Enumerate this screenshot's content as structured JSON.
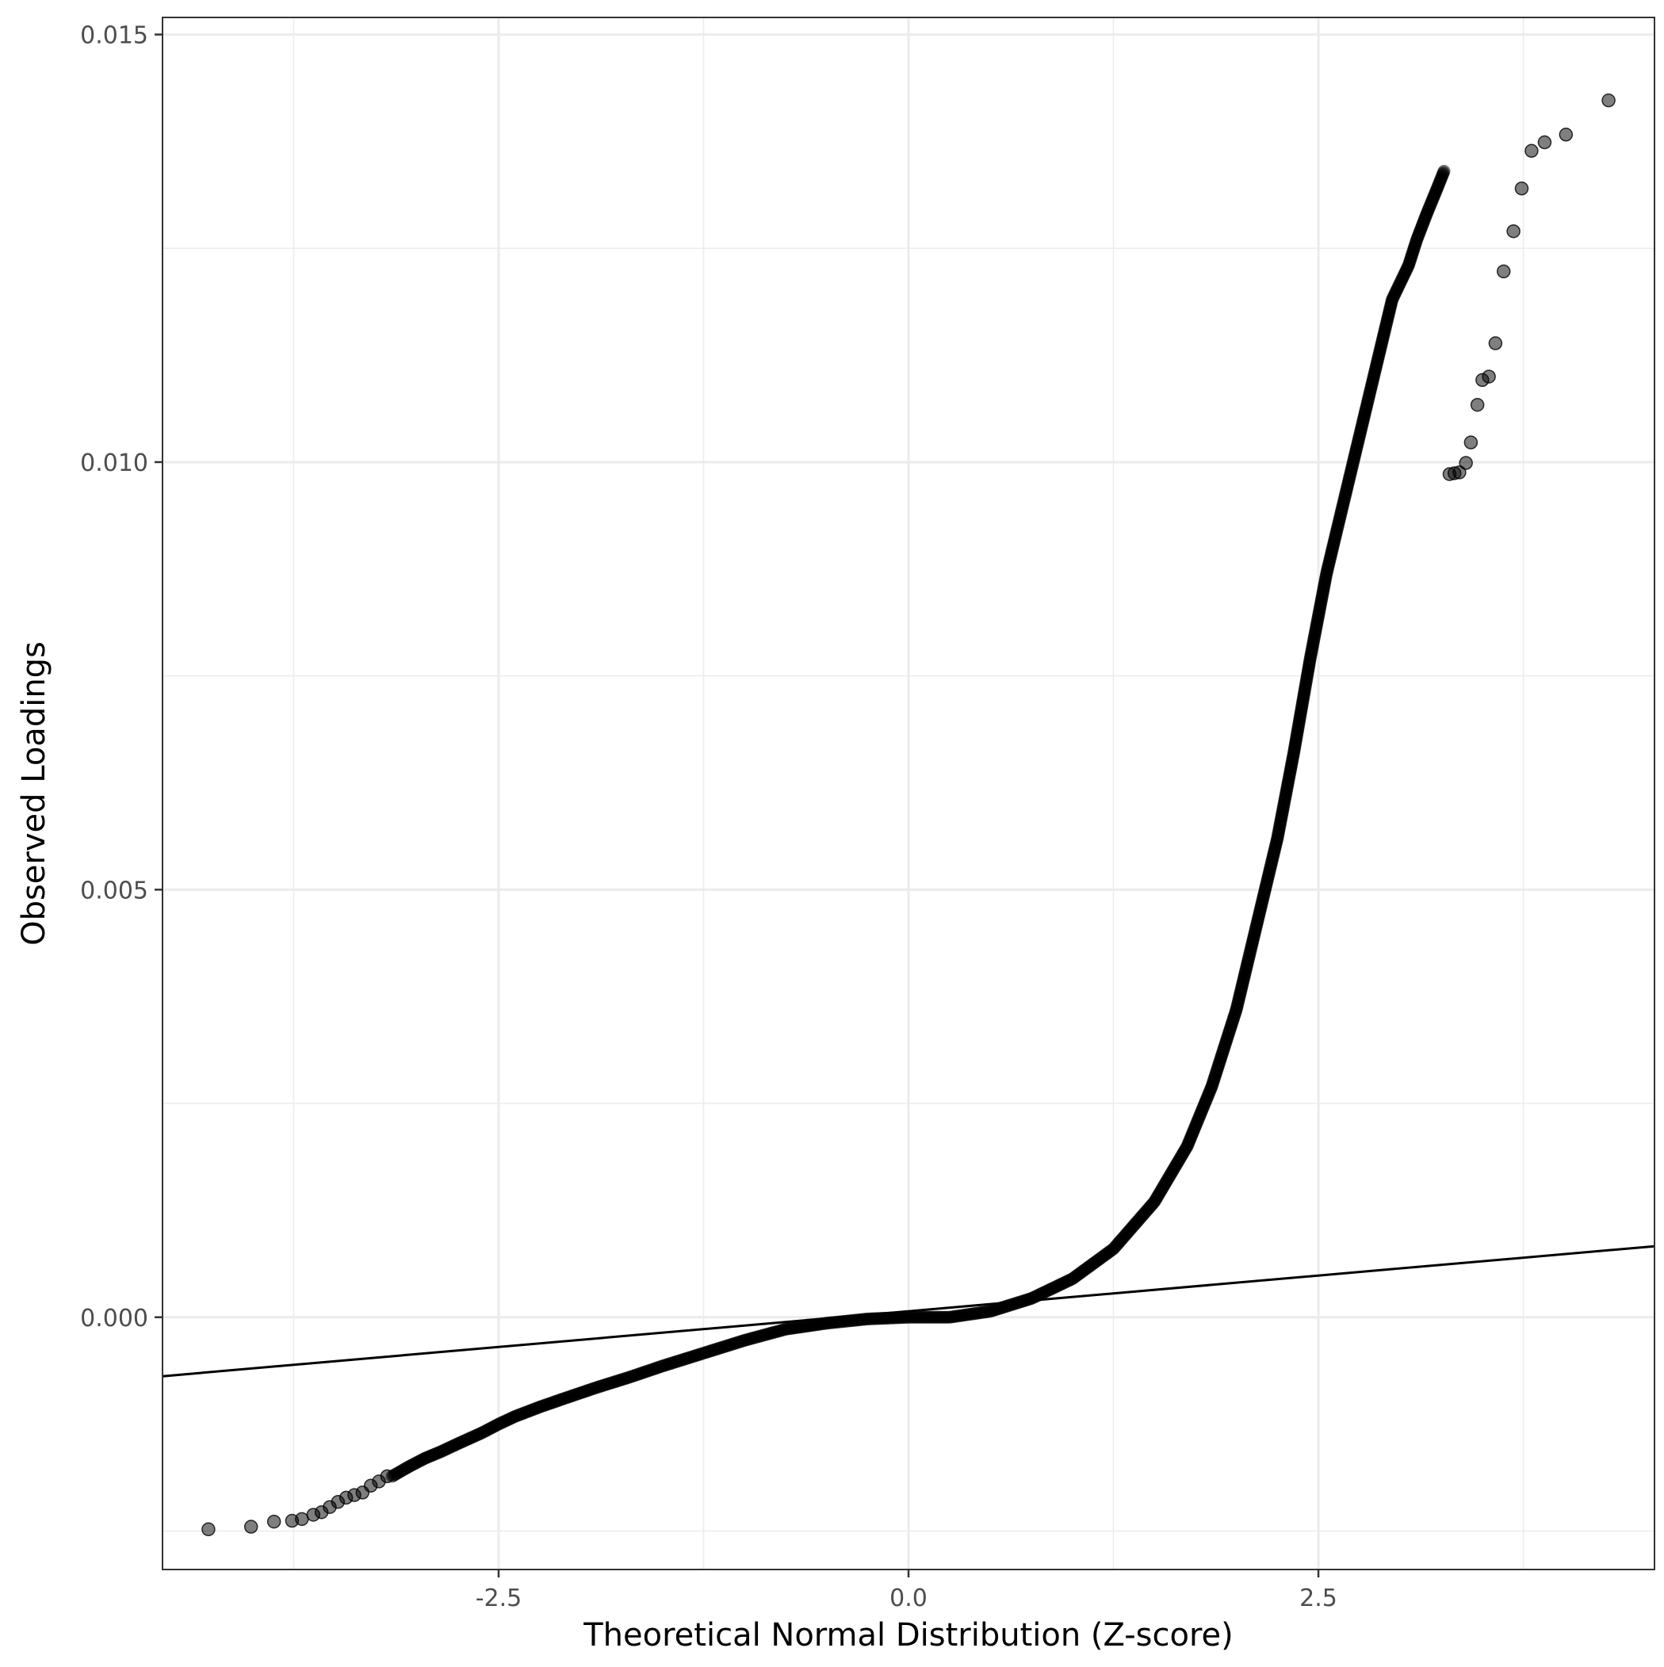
{
  "chart_data": {
    "type": "scatter",
    "subtype": "qq-plot",
    "title": "",
    "xlabel": "Theoretical Normal Distribution (Z-score)",
    "ylabel": "Observed Loadings",
    "xlim": [
      -4.55,
      4.55
    ],
    "ylim": [
      -0.00295,
      0.0152
    ],
    "x_ticks": [
      {
        "value": -2.5,
        "label": "-2.5"
      },
      {
        "value": 0.0,
        "label": "0.0"
      },
      {
        "value": 2.5,
        "label": "2.5"
      }
    ],
    "y_ticks": [
      {
        "value": 0.0,
        "label": "0.000"
      },
      {
        "value": 0.005,
        "label": "0.005"
      },
      {
        "value": 0.01,
        "label": "0.010"
      },
      {
        "value": 0.015,
        "label": "0.015"
      }
    ],
    "x_minor_gridlines": [
      -3.75,
      -1.25,
      1.25,
      3.75
    ],
    "y_minor_gridlines": [
      -0.0025,
      0.0025,
      0.0075,
      0.0125
    ],
    "grid": true,
    "colors": {
      "points": "#000000",
      "reference_line": "#000000",
      "grid": "#ebebeb",
      "panel_border": "#333333",
      "tick_label": "#4d4d4d"
    },
    "point_opacity": 0.5,
    "reference_line": {
      "type": "qqline",
      "points": [
        [
          -4.55,
          -0.00069
        ],
        [
          4.55,
          0.00083
        ]
      ]
    },
    "outlier_points": [
      {
        "x": -4.27,
        "y": -0.00248
      },
      {
        "x": -4.01,
        "y": -0.00245
      },
      {
        "x": -3.87,
        "y": -0.00239
      },
      {
        "x": -3.76,
        "y": -0.00238
      },
      {
        "x": -3.7,
        "y": -0.00236
      },
      {
        "x": -3.63,
        "y": -0.00231
      },
      {
        "x": -3.58,
        "y": -0.00228
      },
      {
        "x": -3.53,
        "y": -0.00222
      },
      {
        "x": -3.48,
        "y": -0.00216
      },
      {
        "x": -3.43,
        "y": -0.00211
      },
      {
        "x": -3.38,
        "y": -0.00208
      },
      {
        "x": -3.33,
        "y": -0.00205
      },
      {
        "x": -3.28,
        "y": -0.00197
      },
      {
        "x": -3.23,
        "y": -0.00192
      },
      {
        "x": -3.18,
        "y": -0.00186
      },
      {
        "x": 3.3,
        "y": 0.00986
      },
      {
        "x": 3.33,
        "y": 0.00987
      },
      {
        "x": 3.36,
        "y": 0.00988
      },
      {
        "x": 3.4,
        "y": 0.00999
      },
      {
        "x": 3.43,
        "y": 0.01023
      },
      {
        "x": 3.47,
        "y": 0.01067
      },
      {
        "x": 3.5,
        "y": 0.01096
      },
      {
        "x": 3.54,
        "y": 0.011
      },
      {
        "x": 3.58,
        "y": 0.01139
      },
      {
        "x": 3.63,
        "y": 0.01223
      },
      {
        "x": 3.69,
        "y": 0.0127
      },
      {
        "x": 3.74,
        "y": 0.0132
      },
      {
        "x": 3.8,
        "y": 0.01364
      },
      {
        "x": 3.88,
        "y": 0.01374
      },
      {
        "x": 4.01,
        "y": 0.01383
      },
      {
        "x": 4.27,
        "y": 0.01423
      }
    ],
    "dense_curve": [
      {
        "x": -3.15,
        "y": -0.00186
      },
      {
        "x": -3.05,
        "y": -0.00175
      },
      {
        "x": -2.95,
        "y": -0.00165
      },
      {
        "x": -2.85,
        "y": -0.00157
      },
      {
        "x": -2.75,
        "y": -0.00148
      },
      {
        "x": -2.6,
        "y": -0.00135
      },
      {
        "x": -2.5,
        "y": -0.00125
      },
      {
        "x": -2.4,
        "y": -0.00116
      },
      {
        "x": -2.25,
        "y": -0.00105
      },
      {
        "x": -2.1,
        "y": -0.00095
      },
      {
        "x": -1.9,
        "y": -0.00082
      },
      {
        "x": -1.7,
        "y": -0.0007
      },
      {
        "x": -1.5,
        "y": -0.00057
      },
      {
        "x": -1.25,
        "y": -0.00042
      },
      {
        "x": -1.0,
        "y": -0.00027
      },
      {
        "x": -0.75,
        "y": -0.00014
      },
      {
        "x": -0.5,
        "y": -7e-05
      },
      {
        "x": -0.25,
        "y": -2e-05
      },
      {
        "x": 0.0,
        "y": 0.0
      },
      {
        "x": 0.25,
        "y": 0.0
      },
      {
        "x": 0.5,
        "y": 7e-05
      },
      {
        "x": 0.75,
        "y": 0.00022
      },
      {
        "x": 1.0,
        "y": 0.00045
      },
      {
        "x": 1.25,
        "y": 0.0008
      },
      {
        "x": 1.5,
        "y": 0.00135
      },
      {
        "x": 1.7,
        "y": 0.002
      },
      {
        "x": 1.85,
        "y": 0.0027
      },
      {
        "x": 2.0,
        "y": 0.0036
      },
      {
        "x": 2.15,
        "y": 0.0048
      },
      {
        "x": 2.25,
        "y": 0.0056
      },
      {
        "x": 2.35,
        "y": 0.0066
      },
      {
        "x": 2.45,
        "y": 0.0077
      },
      {
        "x": 2.55,
        "y": 0.0087
      },
      {
        "x": 2.65,
        "y": 0.0095
      },
      {
        "x": 2.75,
        "y": 0.0103
      },
      {
        "x": 2.85,
        "y": 0.0111
      },
      {
        "x": 2.95,
        "y": 0.0119
      },
      {
        "x": 3.05,
        "y": 0.0123
      },
      {
        "x": 3.1,
        "y": 0.0126
      },
      {
        "x": 3.16,
        "y": 0.0129
      },
      {
        "x": 3.22,
        "y": 0.01318
      },
      {
        "x": 3.27,
        "y": 0.01342
      }
    ]
  }
}
